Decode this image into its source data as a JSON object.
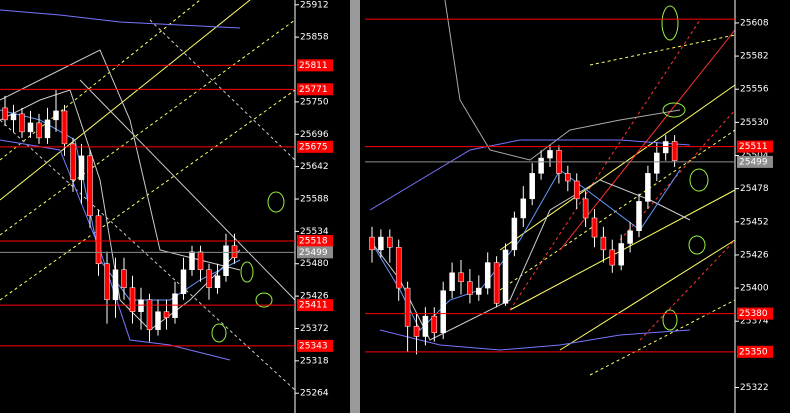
{
  "chart_data": [
    {
      "type": "candlestick",
      "ylim": [
        25231,
        25920
      ],
      "yticks": [
        25912,
        25858,
        25750,
        25696,
        25642,
        25588,
        25534,
        25480,
        25426,
        25372,
        25318,
        25264
      ],
      "levels": [
        {
          "value": 25811,
          "color": "#ff0000",
          "show_label": true
        },
        {
          "value": 25771,
          "color": "#ff0000",
          "show_label": true
        },
        {
          "value": 25675,
          "color": "#ff0000",
          "show_label": true
        },
        {
          "value": 25518,
          "color": "#ff0000",
          "show_label": true
        },
        {
          "value": 25499,
          "color": "#8c8c8c",
          "show_label": true
        },
        {
          "value": 25411,
          "color": "#ff0000",
          "show_label": true
        },
        {
          "value": 25343,
          "color": "#ff0000",
          "show_label": true
        }
      ],
      "open": [
        25740,
        25720,
        25730,
        25700,
        25715,
        25690,
        25720,
        25735,
        25680,
        25620,
        25660,
        25560,
        25480,
        25420,
        25470,
        25440,
        25400,
        25420,
        25370,
        25400,
        25390,
        25430,
        25470,
        25500,
        25470,
        25440,
        25460,
        25510
      ],
      "close": [
        25720,
        25730,
        25700,
        25715,
        25690,
        25720,
        25735,
        25680,
        25620,
        25660,
        25560,
        25480,
        25420,
        25470,
        25440,
        25400,
        25420,
        25370,
        25400,
        25390,
        25430,
        25470,
        25500,
        25470,
        25440,
        25460,
        25510,
        25490
      ],
      "high": [
        25760,
        25745,
        25740,
        25735,
        25730,
        25740,
        25770,
        25745,
        25690,
        25680,
        25670,
        25570,
        25500,
        25490,
        25490,
        25460,
        25440,
        25430,
        25420,
        25420,
        25450,
        25490,
        25510,
        25510,
        25480,
        25480,
        25530,
        25530
      ],
      "low": [
        25710,
        25700,
        25690,
        25690,
        25680,
        25680,
        25700,
        25660,
        25600,
        25580,
        25540,
        25460,
        25380,
        25390,
        25420,
        25380,
        25370,
        25350,
        25360,
        25370,
        25380,
        25420,
        25460,
        25450,
        25420,
        25430,
        25450,
        25480
      ],
      "up_color": "#ffffff",
      "down_color": "#ff0000"
    },
    {
      "type": "candlestick",
      "ylim": [
        25302,
        25626
      ],
      "yticks": [
        25608,
        25582,
        25556,
        25530,
        25504,
        25478,
        25452,
        25426,
        25400,
        25374,
        25322
      ],
      "levels": [
        {
          "value": 25611,
          "color": "#ff0000",
          "show_label": false
        },
        {
          "value": 25511,
          "color": "#ff0000",
          "show_label": true
        },
        {
          "value": 25499,
          "color": "#8c8c8c",
          "show_label": true
        },
        {
          "value": 25380,
          "color": "#ff0000",
          "show_label": true
        },
        {
          "value": 25350,
          "color": "#ff0000",
          "show_label": true
        }
      ],
      "open": [
        25440,
        25430,
        25440,
        25432,
        25400,
        25370,
        25362,
        25378,
        25365,
        25398,
        25412,
        25405,
        25395,
        25400,
        25420,
        25388,
        25430,
        25455,
        25470,
        25490,
        25502,
        25508,
        25490,
        25484,
        25470,
        25455,
        25440,
        25430,
        25418,
        25435,
        25445,
        25468,
        25490,
        25506,
        25515
      ],
      "close": [
        25430,
        25440,
        25432,
        25400,
        25370,
        25362,
        25378,
        25365,
        25398,
        25412,
        25405,
        25395,
        25400,
        25420,
        25388,
        25430,
        25455,
        25470,
        25490,
        25502,
        25508,
        25490,
        25484,
        25470,
        25455,
        25440,
        25430,
        25418,
        25435,
        25445,
        25468,
        25490,
        25506,
        25515,
        25500
      ],
      "high": [
        25448,
        25446,
        25446,
        25438,
        25405,
        25380,
        25385,
        25385,
        25405,
        25420,
        25422,
        25415,
        25410,
        25428,
        25425,
        25435,
        25460,
        25480,
        25498,
        25508,
        25512,
        25512,
        25496,
        25490,
        25476,
        25462,
        25448,
        25438,
        25442,
        25452,
        25474,
        25496,
        25514,
        25520,
        25520
      ],
      "low": [
        25420,
        25424,
        25420,
        25390,
        25350,
        25348,
        25355,
        25358,
        25360,
        25392,
        25395,
        25388,
        25390,
        25395,
        25385,
        25386,
        25425,
        25448,
        25465,
        25485,
        25495,
        25482,
        25476,
        25462,
        25448,
        25432,
        25420,
        25412,
        25414,
        25428,
        25440,
        25462,
        25484,
        25500,
        25495
      ],
      "up_color": "#ffffff",
      "down_color": "#ff0000"
    }
  ]
}
